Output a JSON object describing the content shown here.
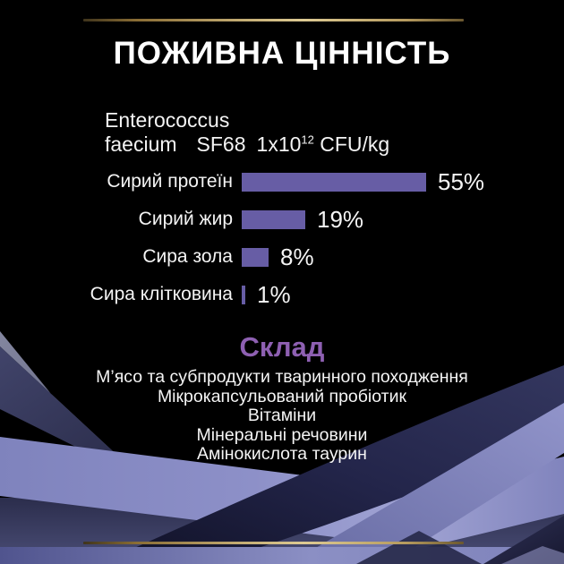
{
  "page": {
    "background_color": "#000000",
    "gold_accent_color": "#c4ad74",
    "bar_color": "#675da5",
    "heading_purple_color": "#8e60b2"
  },
  "header": {
    "title": "ПОЖИВНА ЦІННІСТЬ"
  },
  "probiotic": {
    "line1": "Enterococcus",
    "name2": "faecium",
    "strain": "SF68",
    "amount_base": "1x10",
    "amount_exponent": "12",
    "unit": "CFU/kg"
  },
  "chart_data": {
    "type": "bar",
    "orientation": "horizontal",
    "categories": [
      "Сирий протеїн",
      "Сирий жир",
      "Сира зола",
      "Сира клітковина"
    ],
    "values": [
      55,
      19,
      8,
      1
    ],
    "value_labels": [
      "55%",
      "19%",
      "8%",
      "1%"
    ],
    "unit": "%",
    "xlim": [
      0,
      60
    ],
    "bar_color": "#675da5",
    "grid": false,
    "legend": false
  },
  "composition": {
    "heading": "Склад",
    "items": [
      "М’ясо та субпродукти тваринного походження",
      "Мікрокапсульований пробіотик",
      "Вітаміни",
      "Мінеральні речовини",
      "Амінокислота таурин"
    ]
  }
}
